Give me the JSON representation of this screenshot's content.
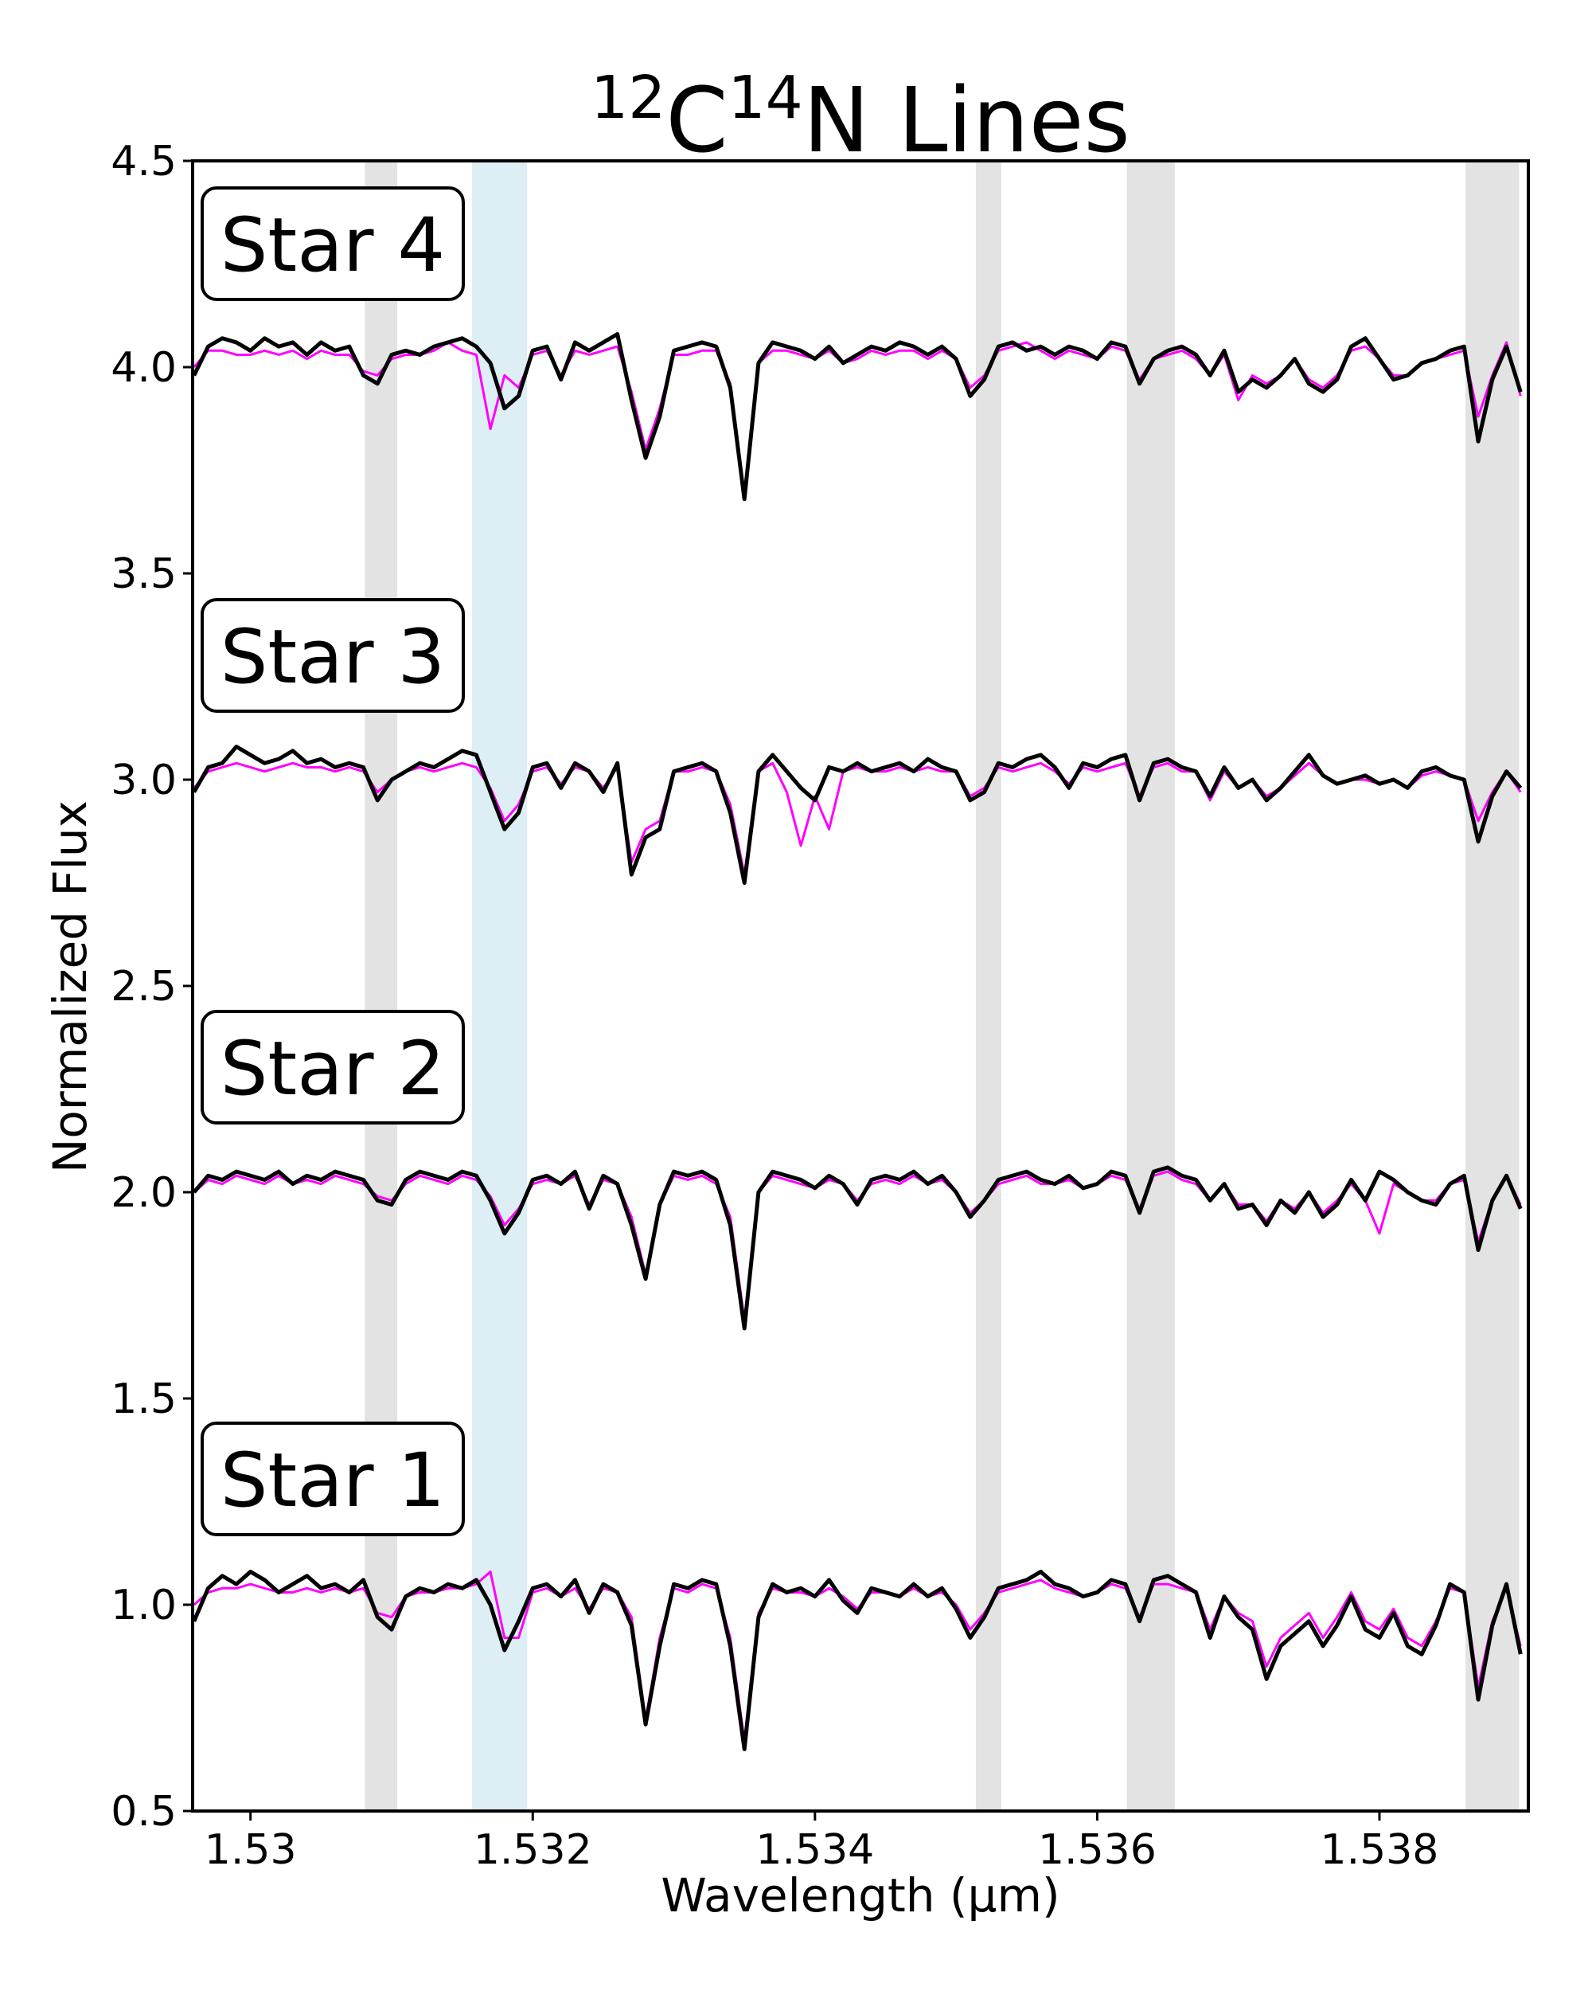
{
  "chart_data": {
    "type": "line",
    "title_parts": [
      {
        "text": "12",
        "sup": true
      },
      {
        "text": "C",
        "sup": false
      },
      {
        "text": "14",
        "sup": true
      },
      {
        "text": "N Lines",
        "sup": false
      }
    ],
    "xlabel": "Wavelength (μm)",
    "ylabel": "Normalized Flux",
    "xlim": [
      1.52959,
      1.539055
    ],
    "xticks": [
      1.53,
      1.532,
      1.534,
      1.536,
      1.538
    ],
    "ylim": [
      0.5,
      4.5
    ],
    "yticks": [
      0.5,
      {
        "value": 1,
        "label": "1.0"
      },
      1.5,
      {
        "value": 2,
        "label": "2.0"
      },
      2.5,
      {
        "value": 3,
        "label": "3.0"
      },
      3.5,
      {
        "value": 4,
        "label": "4.0"
      },
      4.5
    ],
    "spans": [
      {
        "range": [
          1.53081,
          1.53104
        ],
        "color": "#e3e3e3"
      },
      {
        "range": [
          1.53157,
          1.53196
        ],
        "color": "#ddeef5"
      },
      {
        "range": [
          1.53514,
          1.53532
        ],
        "color": "#e3e3e3"
      },
      {
        "range": [
          1.53621,
          1.53655
        ],
        "color": "#e3e3e3"
      },
      {
        "range": [
          1.53861,
          1.53899
        ],
        "color": "#e3e3e3"
      }
    ],
    "x": [
      1.5296,
      1.5297,
      1.5298,
      1.5299,
      1.53,
      1.5301,
      1.5302,
      1.5303,
      1.5304,
      1.5305,
      1.5306,
      1.5307,
      1.5308,
      1.5309,
      1.531,
      1.5311,
      1.5312,
      1.5313,
      1.5314,
      1.5315,
      1.5316,
      1.5317,
      1.5318,
      1.5319,
      1.532,
      1.5321,
      1.5322,
      1.5323,
      1.5324,
      1.5325,
      1.5326,
      1.5327,
      1.5328,
      1.5329,
      1.533,
      1.5331,
      1.5332,
      1.5333,
      1.5334,
      1.5335,
      1.5336,
      1.5337,
      1.5338,
      1.5339,
      1.534,
      1.5341,
      1.5342,
      1.5343,
      1.5344,
      1.5345,
      1.5346,
      1.5347,
      1.5348,
      1.5349,
      1.535,
      1.5351,
      1.5352,
      1.5353,
      1.5354,
      1.5355,
      1.5356,
      1.5357,
      1.5358,
      1.5359,
      1.536,
      1.5361,
      1.5362,
      1.5363,
      1.5364,
      1.5365,
      1.5366,
      1.5367,
      1.5368,
      1.5369,
      1.537,
      1.5371,
      1.5372,
      1.5373,
      1.5374,
      1.5375,
      1.5376,
      1.5377,
      1.5378,
      1.5379,
      1.538,
      1.5381,
      1.5382,
      1.5383,
      1.5384,
      1.5385,
      1.5386,
      1.5387,
      1.5388,
      1.5389,
      1.539
    ],
    "spectra": [
      {
        "label": "Star 4",
        "series": [
          {
            "color": "#ff00ff",
            "values": [
              4.0,
              4.04,
              4.04,
              4.03,
              4.03,
              4.04,
              4.03,
              4.04,
              4.02,
              4.04,
              4.03,
              4.03,
              3.99,
              3.98,
              4.02,
              4.03,
              4.03,
              4.04,
              4.06,
              4.04,
              4.03,
              3.85,
              3.98,
              3.95,
              4.03,
              4.04,
              3.98,
              4.04,
              4.03,
              4.04,
              4.05,
              3.94,
              3.8,
              3.9,
              4.03,
              4.03,
              4.04,
              4.04,
              3.96,
              3.69,
              4.01,
              4.04,
              4.04,
              4.03,
              4.02,
              4.04,
              4.01,
              4.02,
              4.04,
              4.03,
              4.04,
              4.04,
              4.02,
              4.04,
              4.02,
              3.95,
              3.98,
              4.04,
              4.05,
              4.06,
              4.04,
              4.02,
              4.04,
              4.03,
              4.02,
              4.05,
              4.04,
              3.97,
              4.02,
              4.03,
              4.04,
              4.02,
              3.98,
              4.03,
              3.92,
              3.98,
              3.96,
              3.98,
              4.02,
              3.97,
              3.95,
              3.98,
              4.04,
              4.05,
              4.02,
              3.98,
              3.98,
              4.01,
              4.02,
              4.03,
              4.04,
              3.88,
              3.98,
              4.06,
              3.93
            ]
          },
          {
            "color": "#000000",
            "values": [
              3.98,
              4.05,
              4.07,
              4.06,
              4.04,
              4.07,
              4.05,
              4.06,
              4.03,
              4.06,
              4.04,
              4.05,
              3.98,
              3.96,
              4.03,
              4.04,
              4.03,
              4.05,
              4.06,
              4.07,
              4.05,
              4.01,
              3.9,
              3.93,
              4.04,
              4.05,
              3.97,
              4.06,
              4.04,
              4.06,
              4.08,
              3.92,
              3.78,
              3.88,
              4.04,
              4.05,
              4.06,
              4.05,
              3.95,
              3.68,
              4.01,
              4.06,
              4.05,
              4.04,
              4.02,
              4.05,
              4.01,
              4.03,
              4.05,
              4.04,
              4.06,
              4.05,
              4.03,
              4.05,
              4.02,
              3.93,
              3.97,
              4.05,
              4.06,
              4.04,
              4.05,
              4.03,
              4.05,
              4.04,
              4.02,
              4.06,
              4.05,
              3.96,
              4.02,
              4.04,
              4.05,
              4.03,
              3.98,
              4.04,
              3.94,
              3.97,
              3.95,
              3.98,
              4.02,
              3.96,
              3.94,
              3.97,
              4.05,
              4.07,
              4.02,
              3.97,
              3.98,
              4.01,
              4.02,
              4.04,
              4.05,
              3.82,
              3.97,
              4.05,
              3.94
            ]
          }
        ]
      },
      {
        "label": "Star 3",
        "series": [
          {
            "color": "#ff00ff",
            "values": [
              2.98,
              3.02,
              3.03,
              3.04,
              3.03,
              3.02,
              3.03,
              3.04,
              3.03,
              3.03,
              3.02,
              3.03,
              3.02,
              2.97,
              3.0,
              3.02,
              3.03,
              3.02,
              3.03,
              3.04,
              3.03,
              2.98,
              2.9,
              2.94,
              3.02,
              3.03,
              2.99,
              3.03,
              3.02,
              2.98,
              3.03,
              2.8,
              2.88,
              2.9,
              3.02,
              3.02,
              3.03,
              3.02,
              2.94,
              2.77,
              3.02,
              3.04,
              2.97,
              2.84,
              2.96,
              2.88,
              3.02,
              3.03,
              3.02,
              3.02,
              3.03,
              3.02,
              3.03,
              3.02,
              3.02,
              2.96,
              2.98,
              3.03,
              3.02,
              3.03,
              3.04,
              3.02,
              2.99,
              3.03,
              3.02,
              3.03,
              3.04,
              2.96,
              3.03,
              3.04,
              3.02,
              3.02,
              2.95,
              3.02,
              2.98,
              3.0,
              2.96,
              2.98,
              3.01,
              3.04,
              3.01,
              2.99,
              3.0,
              3.0,
              2.99,
              3.0,
              2.98,
              3.01,
              3.02,
              3.01,
              3.0,
              2.9,
              2.97,
              3.02,
              2.97
            ]
          },
          {
            "color": "#000000",
            "values": [
              2.97,
              3.03,
              3.04,
              3.08,
              3.06,
              3.04,
              3.05,
              3.07,
              3.04,
              3.05,
              3.03,
              3.04,
              3.03,
              2.95,
              3.0,
              3.02,
              3.04,
              3.03,
              3.05,
              3.07,
              3.06,
              2.97,
              2.88,
              2.92,
              3.03,
              3.04,
              2.98,
              3.04,
              3.02,
              2.97,
              3.04,
              2.77,
              2.86,
              2.88,
              3.02,
              3.03,
              3.04,
              3.02,
              2.92,
              2.75,
              3.02,
              3.06,
              3.02,
              2.98,
              2.95,
              3.03,
              3.02,
              3.04,
              3.02,
              3.03,
              3.04,
              3.02,
              3.05,
              3.03,
              3.02,
              2.95,
              2.97,
              3.04,
              3.03,
              3.05,
              3.06,
              3.03,
              2.98,
              3.04,
              3.03,
              3.05,
              3.06,
              2.95,
              3.04,
              3.05,
              3.03,
              3.02,
              2.96,
              3.03,
              2.98,
              3.0,
              2.95,
              2.98,
              3.02,
              3.06,
              3.01,
              2.99,
              3.0,
              3.01,
              2.99,
              3.0,
              2.98,
              3.02,
              3.03,
              3.01,
              3.0,
              2.85,
              2.96,
              3.02,
              2.98
            ]
          }
        ]
      },
      {
        "label": "Star 2",
        "series": [
          {
            "color": "#ff00ff",
            "values": [
              2.0,
              2.03,
              2.02,
              2.04,
              2.03,
              2.02,
              2.04,
              2.02,
              2.03,
              2.02,
              2.04,
              2.03,
              2.02,
              1.99,
              1.98,
              2.02,
              2.04,
              2.03,
              2.02,
              2.04,
              2.03,
              1.99,
              1.92,
              1.96,
              2.02,
              2.03,
              2.02,
              2.04,
              1.97,
              2.03,
              2.02,
              1.94,
              1.8,
              1.97,
              2.04,
              2.03,
              2.04,
              2.02,
              1.94,
              1.69,
              2.0,
              2.04,
              2.03,
              2.02,
              2.01,
              2.03,
              2.02,
              1.98,
              2.02,
              2.03,
              2.02,
              2.04,
              2.02,
              2.03,
              2.0,
              1.95,
              1.98,
              2.02,
              2.03,
              2.04,
              2.02,
              2.02,
              2.03,
              2.01,
              2.02,
              2.04,
              2.03,
              1.96,
              2.04,
              2.05,
              2.03,
              2.02,
              1.98,
              2.02,
              1.97,
              1.97,
              1.93,
              1.98,
              1.96,
              2.0,
              1.95,
              1.98,
              2.02,
              1.98,
              1.9,
              2.02,
              2.0,
              1.98,
              1.98,
              2.02,
              2.03,
              1.88,
              1.98,
              2.04,
              1.97
            ]
          },
          {
            "color": "#000000",
            "values": [
              2.0,
              2.04,
              2.03,
              2.05,
              2.04,
              2.03,
              2.05,
              2.02,
              2.04,
              2.03,
              2.05,
              2.04,
              2.03,
              1.98,
              1.97,
              2.03,
              2.05,
              2.04,
              2.03,
              2.05,
              2.04,
              1.98,
              1.9,
              1.95,
              2.03,
              2.04,
              2.02,
              2.05,
              1.96,
              2.04,
              2.02,
              1.92,
              1.79,
              1.97,
              2.05,
              2.04,
              2.05,
              2.03,
              1.92,
              1.67,
              2.0,
              2.05,
              2.04,
              2.03,
              2.01,
              2.04,
              2.02,
              1.97,
              2.03,
              2.04,
              2.03,
              2.05,
              2.02,
              2.04,
              2.0,
              1.94,
              1.98,
              2.03,
              2.04,
              2.05,
              2.03,
              2.02,
              2.04,
              2.01,
              2.02,
              2.05,
              2.04,
              1.95,
              2.05,
              2.06,
              2.04,
              2.03,
              1.98,
              2.02,
              1.96,
              1.97,
              1.92,
              1.98,
              1.95,
              2.0,
              1.94,
              1.97,
              2.03,
              1.98,
              2.05,
              2.03,
              2.0,
              1.98,
              1.97,
              2.02,
              2.04,
              1.86,
              1.98,
              2.04,
              1.96
            ]
          }
        ]
      },
      {
        "label": "Star 1",
        "series": [
          {
            "color": "#ff00ff",
            "values": [
              1.0,
              1.03,
              1.04,
              1.04,
              1.05,
              1.04,
              1.03,
              1.03,
              1.04,
              1.03,
              1.04,
              1.03,
              1.04,
              0.98,
              0.97,
              1.02,
              1.03,
              1.03,
              1.04,
              1.04,
              1.05,
              1.08,
              0.92,
              0.92,
              1.03,
              1.04,
              1.02,
              1.04,
              0.99,
              1.04,
              1.03,
              0.97,
              0.72,
              0.92,
              1.04,
              1.03,
              1.05,
              1.04,
              0.92,
              0.67,
              0.98,
              1.04,
              1.03,
              1.03,
              1.02,
              1.04,
              1.02,
              0.99,
              1.03,
              1.03,
              1.02,
              1.04,
              1.02,
              1.03,
              1.0,
              0.94,
              0.98,
              1.03,
              1.04,
              1.05,
              1.06,
              1.04,
              1.03,
              1.02,
              1.03,
              1.05,
              1.04,
              0.97,
              1.05,
              1.05,
              1.04,
              1.03,
              0.94,
              1.02,
              0.98,
              0.96,
              0.85,
              0.92,
              0.95,
              0.98,
              0.92,
              0.97,
              1.03,
              0.96,
              0.94,
              0.99,
              0.92,
              0.9,
              0.96,
              1.04,
              1.03,
              0.8,
              0.96,
              1.04,
              0.9
            ]
          },
          {
            "color": "#000000",
            "values": [
              0.96,
              1.04,
              1.07,
              1.05,
              1.08,
              1.06,
              1.03,
              1.05,
              1.07,
              1.04,
              1.05,
              1.03,
              1.06,
              0.97,
              0.94,
              1.02,
              1.04,
              1.03,
              1.05,
              1.04,
              1.06,
              1.0,
              0.89,
              0.96,
              1.04,
              1.05,
              1.02,
              1.06,
              0.98,
              1.05,
              1.03,
              0.95,
              0.71,
              0.9,
              1.05,
              1.04,
              1.06,
              1.05,
              0.9,
              0.65,
              0.97,
              1.05,
              1.03,
              1.04,
              1.02,
              1.06,
              1.01,
              0.98,
              1.04,
              1.03,
              1.02,
              1.05,
              1.02,
              1.04,
              0.99,
              0.92,
              0.97,
              1.04,
              1.05,
              1.06,
              1.08,
              1.05,
              1.04,
              1.02,
              1.03,
              1.06,
              1.05,
              0.96,
              1.06,
              1.07,
              1.05,
              1.03,
              0.92,
              1.02,
              0.97,
              0.94,
              0.82,
              0.9,
              0.93,
              0.96,
              0.9,
              0.95,
              1.02,
              0.94,
              0.92,
              0.98,
              0.9,
              0.88,
              0.95,
              1.05,
              1.03,
              0.77,
              0.95,
              1.05,
              0.88
            ]
          }
        ]
      }
    ]
  }
}
